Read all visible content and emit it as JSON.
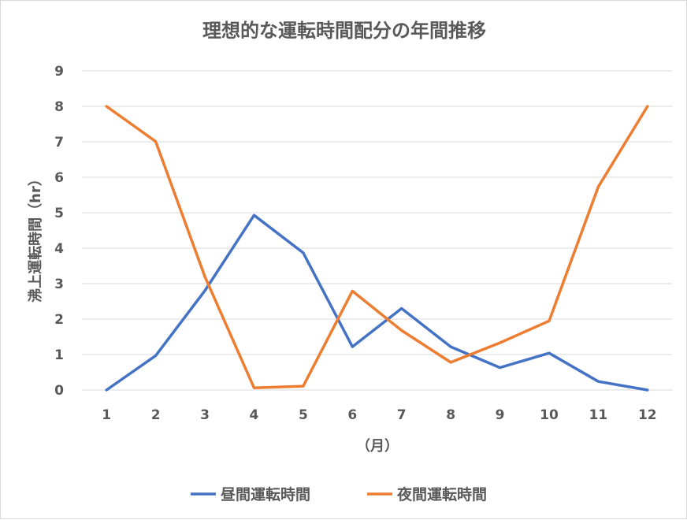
{
  "chart_data": {
    "type": "line",
    "title": "理想的な運転時間配分の年間推移",
    "xlabel": "（月）",
    "ylabel": "沸上運転時間（hr）",
    "categories": [
      "1",
      "2",
      "3",
      "4",
      "5",
      "6",
      "7",
      "8",
      "9",
      "10",
      "11",
      "12"
    ],
    "ylim": [
      0,
      9
    ],
    "yticks": [
      "0",
      "1",
      "2",
      "3",
      "4",
      "5",
      "6",
      "7",
      "8",
      "9"
    ],
    "grid": true,
    "legend_position": "bottom",
    "series": [
      {
        "name": "昼間運転時間",
        "color": "#4472C4",
        "values": [
          0,
          0.97,
          2.8,
          4.93,
          3.87,
          1.22,
          2.3,
          1.22,
          0.63,
          1.04,
          0.24,
          0
        ]
      },
      {
        "name": "夜間運転時間",
        "color": "#ED7D31",
        "values": [
          8,
          7.01,
          3.2,
          0.06,
          0.11,
          2.79,
          1.68,
          0.78,
          1.33,
          1.95,
          5.73,
          8
        ]
      }
    ]
  }
}
